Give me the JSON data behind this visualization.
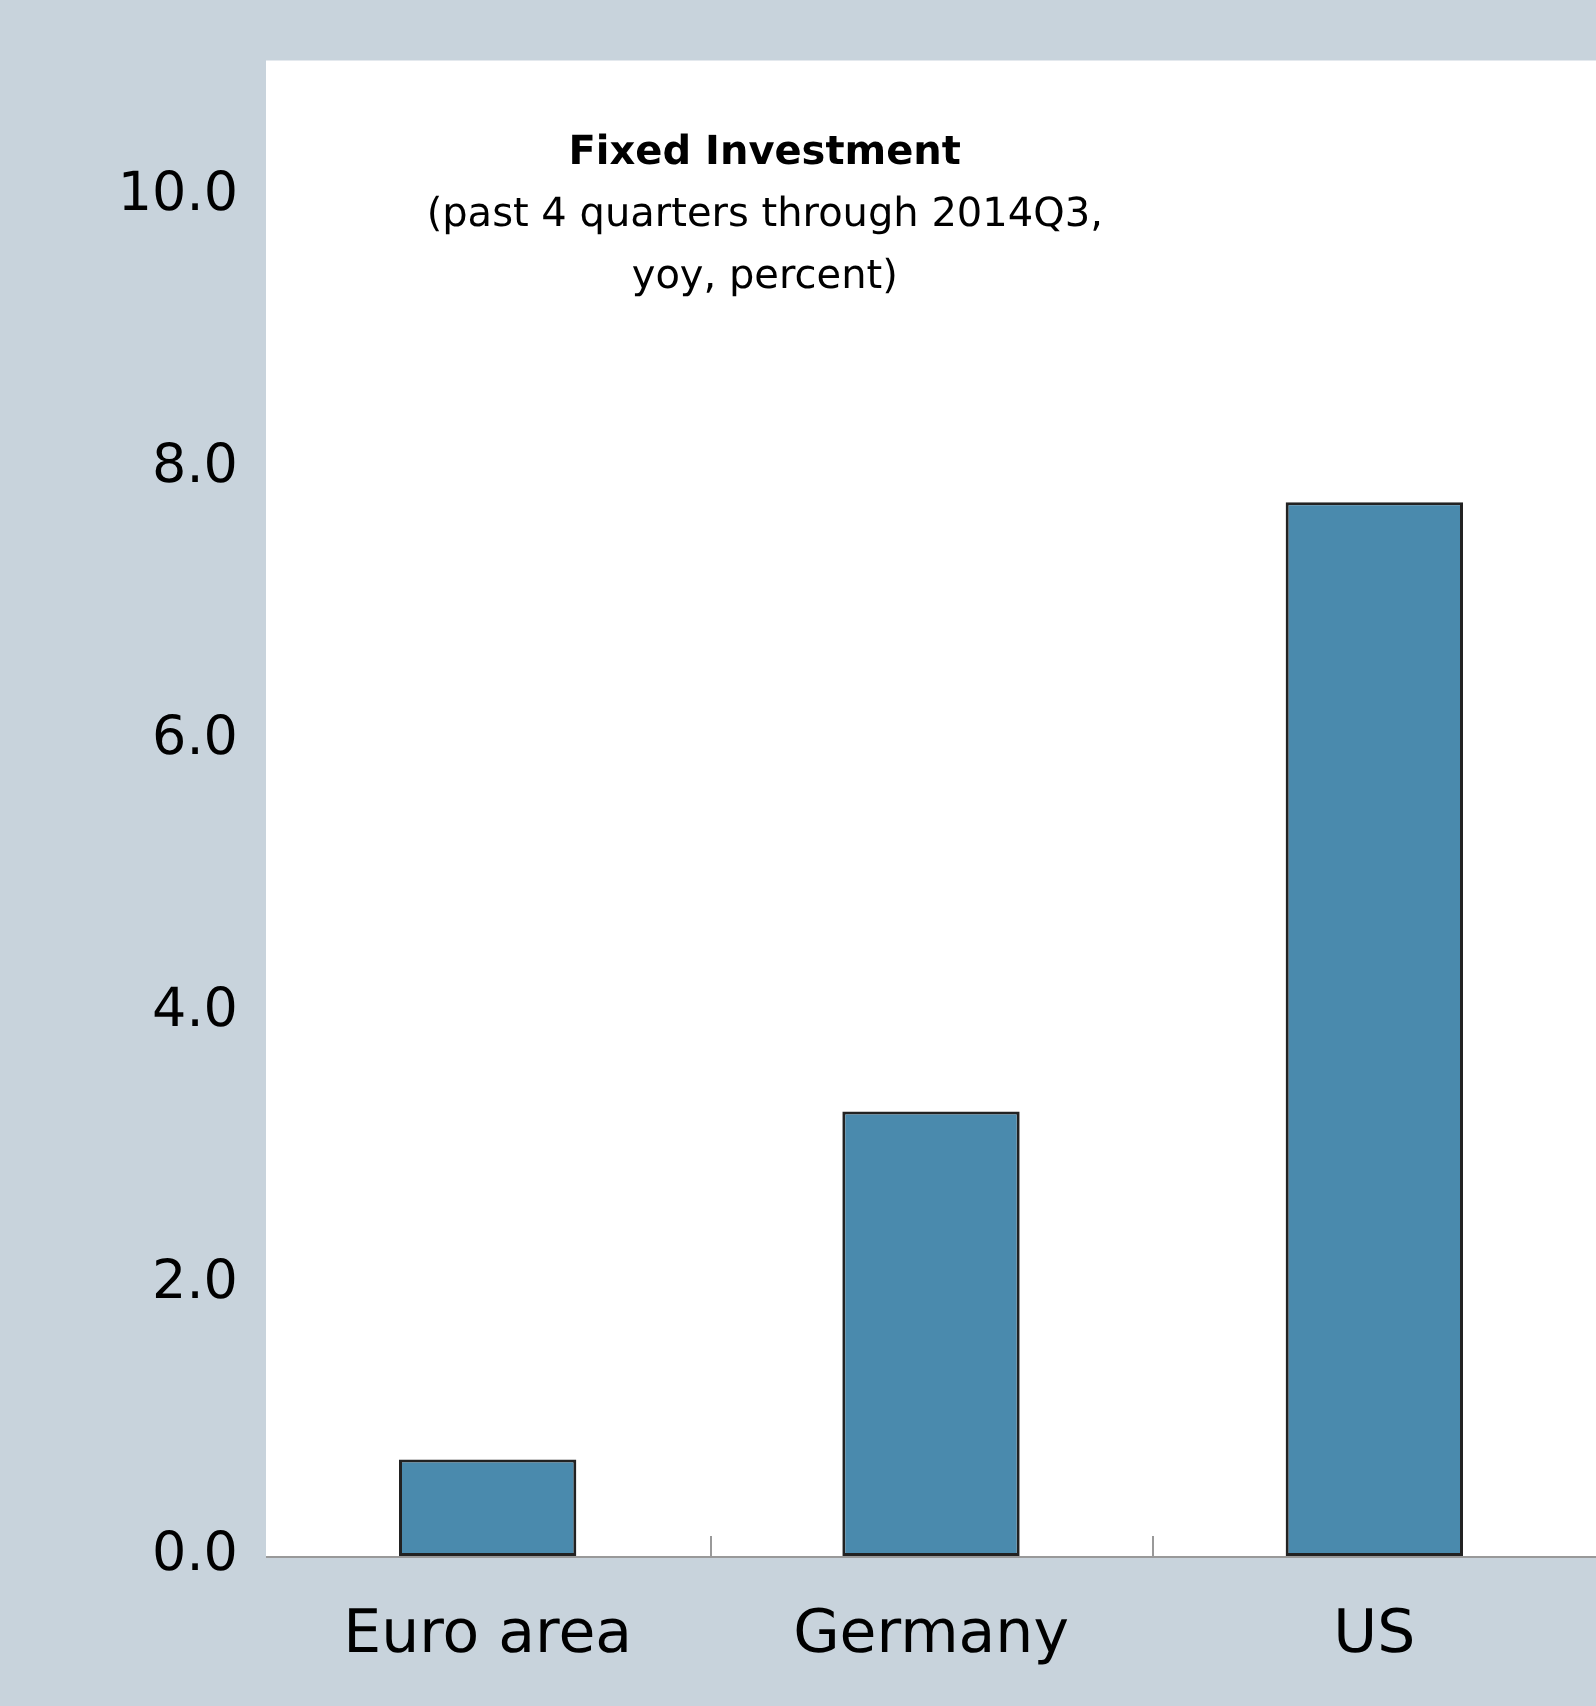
{
  "chart_data": {
    "type": "bar",
    "title": "Fixed Investment",
    "subtitle": "(past 4 quarters through 2014Q3, yoy, percent)",
    "categories": [
      "Euro area",
      "Germany",
      "US"
    ],
    "values": [
      0.71,
      3.27,
      7.75
    ],
    "color": "#4a8aad",
    "ylim": [
      0,
      11
    ],
    "yticks": [
      {
        "value": 0,
        "label": "0.0"
      },
      {
        "value": 2,
        "label": "2.0"
      },
      {
        "value": 4,
        "label": "4.0"
      },
      {
        "value": 6,
        "label": "6.0"
      },
      {
        "value": 8,
        "label": "8.0"
      },
      {
        "value": 10,
        "label": "10.0"
      }
    ],
    "grid": false,
    "legend": false
  }
}
